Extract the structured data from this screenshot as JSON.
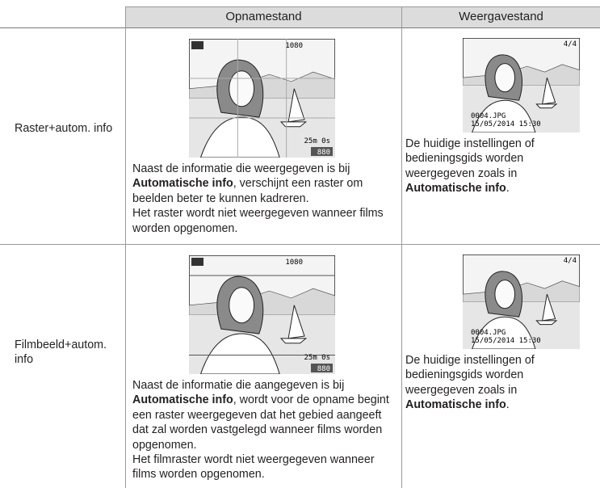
{
  "table": {
    "headers": [
      "Opnamestand",
      "Weergavestand"
    ],
    "rows": [
      {
        "label": "Raster+autom. info",
        "shooting": {
          "screen": {
            "movie": "1080",
            "time": "25m 0s",
            "count": "880"
          },
          "paragraphs": [
            [
              "Naast de informatie die weergegeven is bij ",
              "Automatische info",
              ", verschijnt een raster om beelden beter te kunnen kadreren."
            ],
            [
              "Het raster wordt niet weergegeven wanneer films worden opgenomen."
            ]
          ]
        },
        "playback": {
          "screen": {
            "frame": "4/4",
            "file": "0004.JPG",
            "date": "15/05/2014 15:30"
          },
          "paragraphs": [
            [
              "De huidige instellingen of bedieningsgids worden weergegeven zoals in ",
              "Automatische info",
              "."
            ]
          ]
        }
      },
      {
        "label": "Filmbeeld+autom. info",
        "shooting": {
          "screen": {
            "movie": "1080",
            "time": "25m 0s",
            "count": "880"
          },
          "paragraphs": [
            [
              "Naast de informatie die aangegeven is bij ",
              "Automatische info",
              ", wordt voor de opname begint een raster weergegeven dat het gebied aangeeft dat zal worden vastgelegd wanneer films worden opgenomen."
            ],
            [
              "Het filmraster wordt niet weergegeven wanneer films worden opgenomen."
            ]
          ]
        },
        "playback": {
          "screen": {
            "frame": "4/4",
            "file": "0004.JPG",
            "date": "15/05/2014 15:30"
          },
          "paragraphs": [
            [
              "De huidige instellingen of bedieningsgids worden weergegeven zoals in ",
              "Automatische info",
              "."
            ]
          ]
        }
      }
    ]
  }
}
